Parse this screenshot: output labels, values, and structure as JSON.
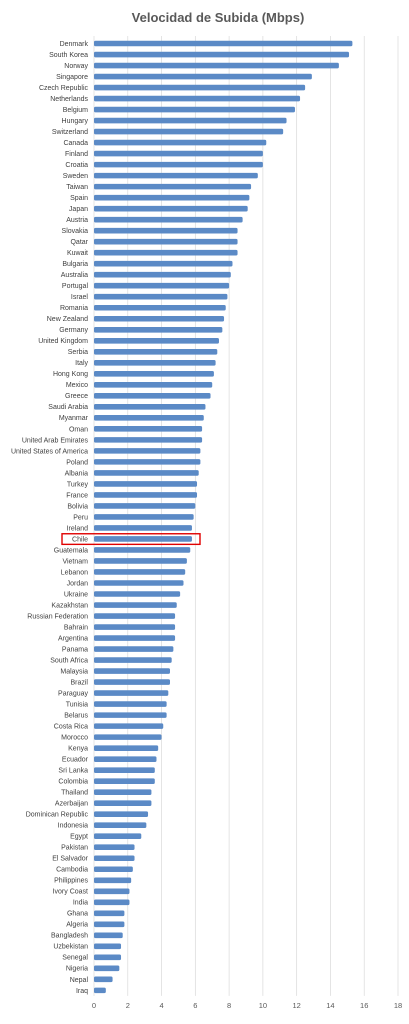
{
  "chart_data": {
    "type": "bar",
    "orientation": "horizontal",
    "title": "Velocidad de Subida (Mbps)",
    "xlabel": "",
    "ylabel": "",
    "xlim": [
      0,
      18
    ],
    "x_ticks": [
      "0",
      "2",
      "4",
      "6",
      "8",
      "10",
      "12",
      "14",
      "16",
      "18"
    ],
    "grid": "vertical",
    "bar_color": "#5b8ac6",
    "highlight_color": "#e00000",
    "highlight_category": "Chile",
    "categories": [
      "Denmark",
      "South Korea",
      "Norway",
      "Singapore",
      "Czech Republic",
      "Netherlands",
      "Belgium",
      "Hungary",
      "Switzerland",
      "Canada",
      "Finland",
      "Croatia",
      "Sweden",
      "Taiwan",
      "Spain",
      "Japan",
      "Austria",
      "Slovakia",
      "Qatar",
      "Kuwait",
      "Bulgaria",
      "Australia",
      "Portugal",
      "Israel",
      "Romania",
      "New Zealand",
      "Germany",
      "United Kingdom",
      "Serbia",
      "Italy",
      "Hong Kong",
      "Mexico",
      "Greece",
      "Saudi Arabia",
      "Myanmar",
      "Oman",
      "United Arab Emirates",
      "United States of America",
      "Poland",
      "Albania",
      "Turkey",
      "France",
      "Bolivia",
      "Peru",
      "Ireland",
      "Chile",
      "Guatemala",
      "Vietnam",
      "Lebanon",
      "Jordan",
      "Ukraine",
      "Kazakhstan",
      "Russian Federation",
      "Bahrain",
      "Argentina",
      "Panama",
      "South Africa",
      "Malaysia",
      "Brazil",
      "Paraguay",
      "Tunisia",
      "Belarus",
      "Costa Rica",
      "Morocco",
      "Kenya",
      "Ecuador",
      "Sri Lanka",
      "Colombia",
      "Thailand",
      "Azerbaijan",
      "Dominican Republic",
      "Indonesia",
      "Egypt",
      "Pakistan",
      "El Salvador",
      "Cambodia",
      "Philippines",
      "Ivory Coast",
      "India",
      "Ghana",
      "Algeria",
      "Bangladesh",
      "Uzbekistan",
      "Senegal",
      "Nigeria",
      "Nepal",
      "Iraq"
    ],
    "values": [
      15.3,
      15.1,
      14.5,
      12.9,
      12.5,
      12.2,
      11.9,
      11.4,
      11.2,
      10.2,
      10.0,
      10.0,
      9.7,
      9.3,
      9.2,
      9.1,
      8.8,
      8.5,
      8.5,
      8.5,
      8.2,
      8.1,
      8.0,
      7.9,
      7.8,
      7.7,
      7.6,
      7.4,
      7.3,
      7.2,
      7.1,
      7.0,
      6.9,
      6.6,
      6.5,
      6.4,
      6.4,
      6.3,
      6.3,
      6.2,
      6.1,
      6.1,
      6.0,
      5.9,
      5.8,
      5.8,
      5.7,
      5.5,
      5.4,
      5.3,
      5.1,
      4.9,
      4.8,
      4.8,
      4.8,
      4.7,
      4.6,
      4.5,
      4.5,
      4.4,
      4.3,
      4.3,
      4.1,
      4.0,
      3.8,
      3.7,
      3.6,
      3.6,
      3.4,
      3.4,
      3.2,
      3.1,
      2.8,
      2.4,
      2.4,
      2.3,
      2.2,
      2.1,
      2.1,
      1.8,
      1.8,
      1.7,
      1.6,
      1.6,
      1.5,
      1.1,
      0.7
    ]
  }
}
